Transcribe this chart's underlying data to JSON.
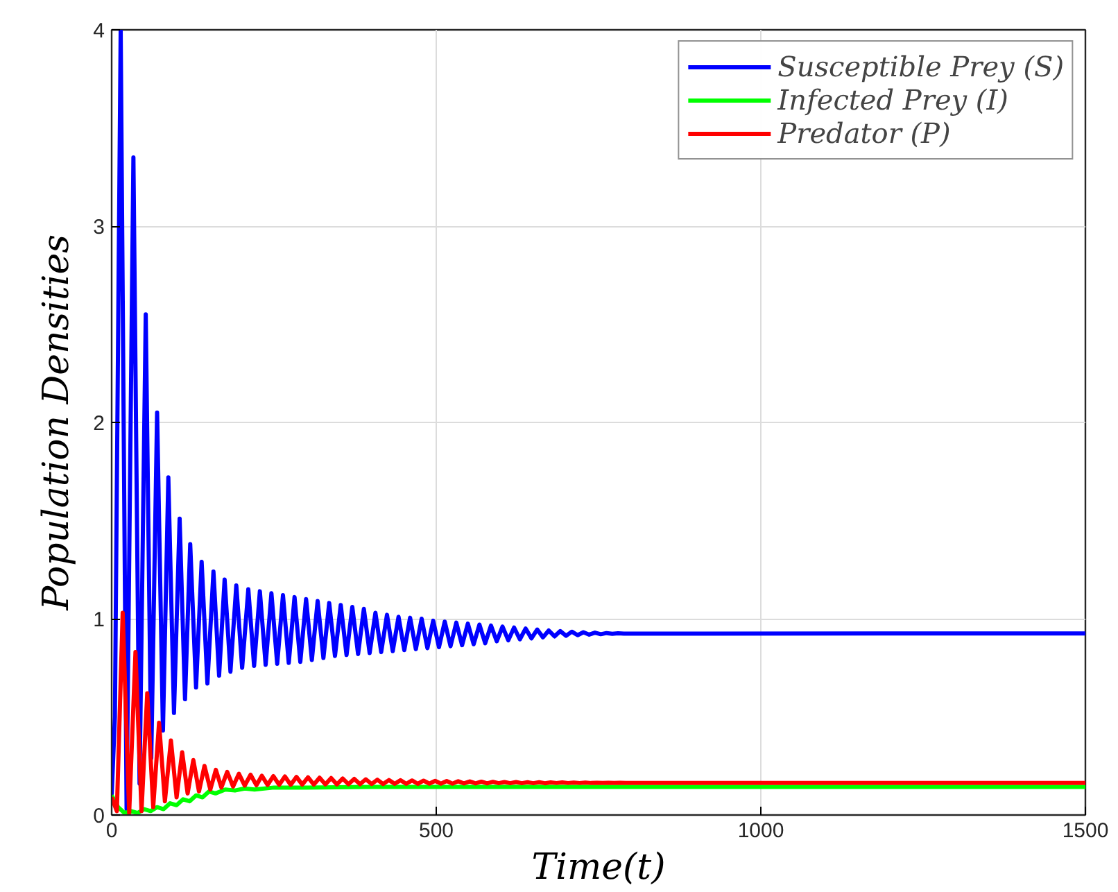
{
  "chart_data": {
    "type": "line",
    "xlabel": "Time(t)",
    "ylabel": "Population Densities",
    "xlim": [
      0,
      1500
    ],
    "ylim": [
      0,
      4
    ],
    "xticks": [
      0,
      500,
      1000,
      1500
    ],
    "yticks": [
      0,
      1,
      2,
      3,
      4
    ],
    "grid": true,
    "legend": "top right",
    "line_style": "solid",
    "marker": "none",
    "series": [
      {
        "name": "Susceptible Prey (S)",
        "color": "#0000ff",
        "x": [
          0,
          5,
          13.9,
          23,
          33.5,
          43,
          52.5,
          61,
          70,
          79,
          87.3,
          96,
          104.7,
          113,
          121,
          130,
          138.6,
          147.5,
          156.8,
          165.5,
          174,
          183,
          192,
          201,
          210.5,
          219.4,
          228.3,
          237.2,
          246.1,
          255,
          263.9,
          272.8,
          281.7,
          290.6,
          299.5,
          308.4,
          317.3,
          326.2,
          335.1,
          344,
          352.9,
          361.8,
          370.7,
          379.6,
          388.5,
          397.4,
          406.3,
          415.2,
          424.1,
          433,
          441.9,
          450.8,
          459.7,
          468.6,
          477.5,
          486.4,
          495.3,
          504.2,
          513.1,
          522,
          530.9,
          539.8,
          548.7,
          557.6,
          566.5,
          575.4,
          584.3,
          593.2,
          602.1,
          611,
          619.9,
          628.8,
          637.7,
          646.6,
          655.5,
          664.4,
          673.3,
          682.2,
          691.1,
          700,
          708.9,
          717.8,
          726.7,
          735.6,
          744.5,
          753.4,
          762.3,
          771.2,
          780.1,
          789,
          1500
        ],
        "values": [
          0.1,
          0.5,
          4.0,
          0.03,
          3.35,
          0.16,
          2.55,
          0.29,
          2.05,
          0.43,
          1.72,
          0.52,
          1.51,
          0.59,
          1.38,
          0.65,
          1.29,
          0.67,
          1.24,
          0.71,
          1.2,
          0.73,
          1.17,
          0.75,
          1.15,
          0.76,
          1.14,
          0.765,
          1.13,
          0.77,
          1.12,
          0.775,
          1.11,
          0.78,
          1.1,
          0.79,
          1.09,
          0.8,
          1.08,
          0.81,
          1.07,
          0.815,
          1.06,
          0.82,
          1.05,
          0.825,
          1.03,
          0.83,
          1.02,
          0.835,
          1.01,
          0.84,
          1.005,
          0.845,
          1.0,
          0.85,
          0.99,
          0.855,
          0.985,
          0.86,
          0.98,
          0.865,
          0.975,
          0.87,
          0.97,
          0.875,
          0.965,
          0.885,
          0.96,
          0.89,
          0.955,
          0.895,
          0.95,
          0.9,
          0.945,
          0.905,
          0.94,
          0.91,
          0.937,
          0.913,
          0.934,
          0.916,
          0.931,
          0.919,
          0.929,
          0.921,
          0.927,
          0.923,
          0.926,
          0.924,
          0.925
        ]
      },
      {
        "name": "Infected Prey (I)",
        "color": "#00ff00",
        "x": [
          0,
          10,
          20,
          30,
          40,
          50,
          60,
          70,
          80,
          90,
          100,
          110,
          120,
          130,
          140,
          150,
          160,
          175,
          190,
          205,
          220,
          250,
          300,
          400,
          1500
        ],
        "values": [
          0.1,
          0.04,
          0.01,
          0.02,
          0.01,
          0.03,
          0.02,
          0.04,
          0.03,
          0.06,
          0.05,
          0.08,
          0.07,
          0.1,
          0.09,
          0.12,
          0.11,
          0.13,
          0.125,
          0.135,
          0.13,
          0.14,
          0.14,
          0.143,
          0.143
        ]
      },
      {
        "name": "Predator (P)",
        "color": "#ff0000",
        "x": [
          0,
          8,
          17,
          27,
          36.7,
          46,
          54.8,
          64,
          73,
          82,
          91.3,
          100,
          108.6,
          117,
          125.8,
          134.5,
          143,
          152,
          160.5,
          169,
          178,
          187,
          196,
          205,
          214,
          223,
          231.3,
          240.2,
          249.1,
          258,
          266.9,
          275.8,
          284.7,
          293.6,
          302.5,
          311.4,
          320.3,
          329.2,
          338.1,
          347,
          355.9,
          364.8,
          373.7,
          382.6,
          391.5,
          400.4,
          409.3,
          418.2,
          427.1,
          436,
          444.9,
          453.8,
          462.7,
          471.6,
          480.5,
          489.4,
          498.3,
          507.2,
          516.1,
          525,
          533.9,
          542.8,
          551.7,
          560.6,
          569.5,
          578.4,
          587.3,
          596.2,
          605.1,
          614,
          622.9,
          631.8,
          640.7,
          649.6,
          658.5,
          667.4,
          676.3,
          685.2,
          694.1,
          703,
          711.9,
          720.8,
          729.7,
          738.6,
          747.5,
          756.4,
          765.3,
          774.2,
          783.1,
          792,
          1500
        ],
        "values": [
          0.09,
          0.02,
          1.03,
          0.01,
          0.83,
          0.02,
          0.62,
          0.04,
          0.47,
          0.07,
          0.38,
          0.09,
          0.32,
          0.11,
          0.28,
          0.12,
          0.25,
          0.13,
          0.23,
          0.14,
          0.22,
          0.145,
          0.21,
          0.15,
          0.205,
          0.152,
          0.2,
          0.153,
          0.198,
          0.154,
          0.196,
          0.154,
          0.194,
          0.155,
          0.192,
          0.155,
          0.19,
          0.156,
          0.188,
          0.156,
          0.186,
          0.157,
          0.184,
          0.157,
          0.182,
          0.158,
          0.18,
          0.158,
          0.178,
          0.159,
          0.177,
          0.159,
          0.176,
          0.159,
          0.175,
          0.16,
          0.174,
          0.16,
          0.173,
          0.16,
          0.172,
          0.161,
          0.171,
          0.161,
          0.17,
          0.161,
          0.169,
          0.162,
          0.168,
          0.162,
          0.168,
          0.162,
          0.167,
          0.162,
          0.167,
          0.162,
          0.166,
          0.163,
          0.166,
          0.163,
          0.165,
          0.163,
          0.165,
          0.163,
          0.164,
          0.163,
          0.164,
          0.163,
          0.164,
          0.163,
          0.163
        ]
      }
    ]
  }
}
